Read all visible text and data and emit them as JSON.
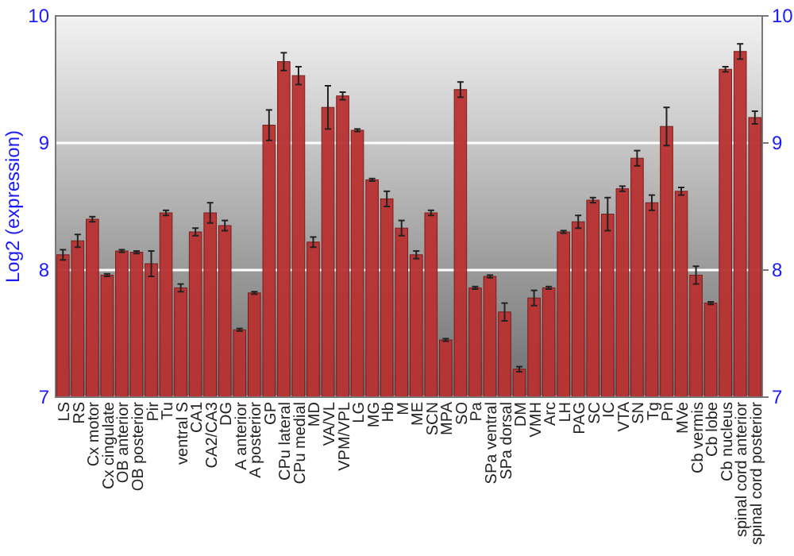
{
  "chart_data": {
    "type": "bar",
    "ylabel": "Log2 (expression)",
    "categories": [
      "LS",
      "RS",
      "Cx motor",
      "Cx cingulate",
      "OB anterior",
      "OB posterior",
      "Pir",
      "Tu",
      "ventral S",
      "CA1",
      "CA2/CA3",
      "DG",
      "A anterior",
      "A posterior",
      "GP",
      "CPu lateral",
      "CPu medial",
      "MD",
      "VA/VL",
      "VPM/VPL",
      "LG",
      "MG",
      "Hb",
      "M",
      "ME",
      "SCN",
      "MPA",
      "SO",
      "Pa",
      "SPa ventral",
      "SPa dorsal",
      "DM",
      "VMH",
      "Arc",
      "LH",
      "PAG",
      "SC",
      "IC",
      "VTA",
      "SN",
      "Tg",
      "Pn",
      "MVe",
      "Cb vermis",
      "Cb lobe",
      "Cb nucleus",
      "spinal cord anterior",
      "spinal cord posterior"
    ],
    "values": [
      8.12,
      8.23,
      8.4,
      7.96,
      8.15,
      8.14,
      8.05,
      8.45,
      7.86,
      8.3,
      8.45,
      8.35,
      7.53,
      7.82,
      9.14,
      9.64,
      9.53,
      8.22,
      9.28,
      9.37,
      9.1,
      8.71,
      8.56,
      8.33,
      8.12,
      8.45,
      7.45,
      9.42,
      7.86,
      7.95,
      7.67,
      7.22,
      7.78,
      7.86,
      8.3,
      8.38,
      8.55,
      8.44,
      8.64,
      8.88,
      8.53,
      9.13,
      8.62,
      7.96,
      7.74,
      9.58,
      9.72,
      9.2
    ],
    "errors": [
      0.04,
      0.05,
      0.02,
      0.01,
      0.01,
      0.01,
      0.1,
      0.02,
      0.03,
      0.03,
      0.08,
      0.04,
      0.01,
      0.01,
      0.12,
      0.07,
      0.07,
      0.04,
      0.17,
      0.03,
      0.01,
      0.01,
      0.06,
      0.06,
      0.03,
      0.02,
      0.01,
      0.06,
      0.01,
      0.01,
      0.07,
      0.02,
      0.06,
      0.01,
      0.01,
      0.05,
      0.02,
      0.13,
      0.02,
      0.06,
      0.06,
      0.15,
      0.03,
      0.07,
      0.01,
      0.02,
      0.06,
      0.05
    ],
    "color": "#b83232",
    "ylim": [
      7,
      10
    ],
    "yticks": [
      7,
      8,
      9,
      10
    ],
    "y2lim": [
      7,
      10
    ],
    "y2ticks": [
      7,
      8,
      9,
      10
    ],
    "grid": true
  }
}
